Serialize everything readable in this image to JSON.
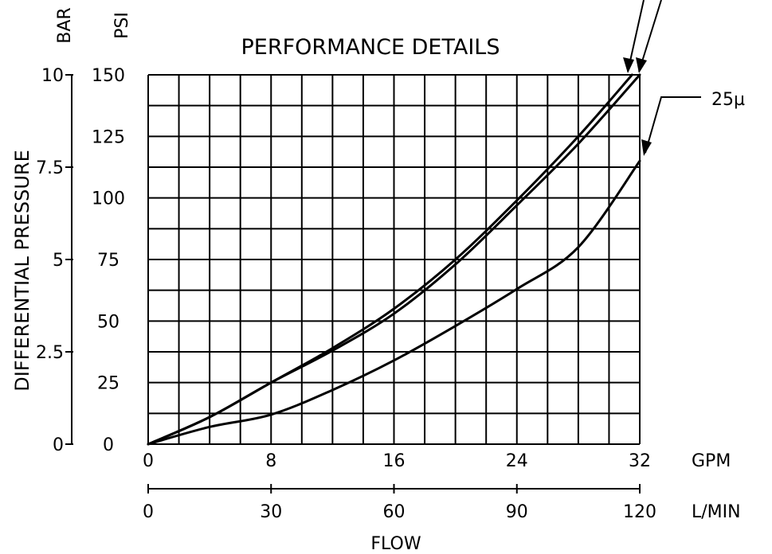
{
  "chart_data": {
    "type": "line",
    "title": "PERFORMANCE DETAILS",
    "ylabel": "DIFFERENTIAL PRESSURE",
    "xlabel": "FLOW",
    "x_unit_primary": "GPM",
    "x_unit_secondary": "L/MIN",
    "y_unit_primary": "PSI",
    "y_unit_secondary": "BAR",
    "xlim": [
      0,
      32
    ],
    "ylim": [
      0,
      150
    ],
    "x_ticks_gpm": [
      "0",
      "8",
      "16",
      "24",
      "32"
    ],
    "x_ticks_lmin": [
      "0",
      "30",
      "60",
      "90",
      "120"
    ],
    "y_ticks_psi": [
      "0",
      "25",
      "50",
      "75",
      "100",
      "125",
      "150"
    ],
    "y_ticks_bar": [
      "0",
      "2.5",
      "5",
      "7.5",
      "10"
    ],
    "grid": true,
    "grid_x_step": 2,
    "grid_y_step": 12.5,
    "series": [
      {
        "name": "",
        "x": [
          0,
          4,
          8,
          12,
          16,
          20,
          24,
          28,
          31.5
        ],
        "y": [
          0,
          11,
          25,
          39,
          55,
          75,
          99,
          125,
          150
        ]
      },
      {
        "name": "",
        "x": [
          0,
          4,
          8,
          12,
          16,
          20,
          24,
          28,
          32
        ],
        "y": [
          0,
          11,
          25,
          38,
          53,
          73,
          97,
          122,
          150
        ]
      },
      {
        "name": "25µ",
        "x": [
          0,
          4,
          8,
          12,
          16,
          20,
          24,
          28,
          32
        ],
        "y": [
          0,
          7,
          12,
          22,
          34,
          48,
          63,
          80,
          115
        ]
      }
    ],
    "annotations": [
      {
        "text": "25µ",
        "target_series": 2
      }
    ]
  }
}
